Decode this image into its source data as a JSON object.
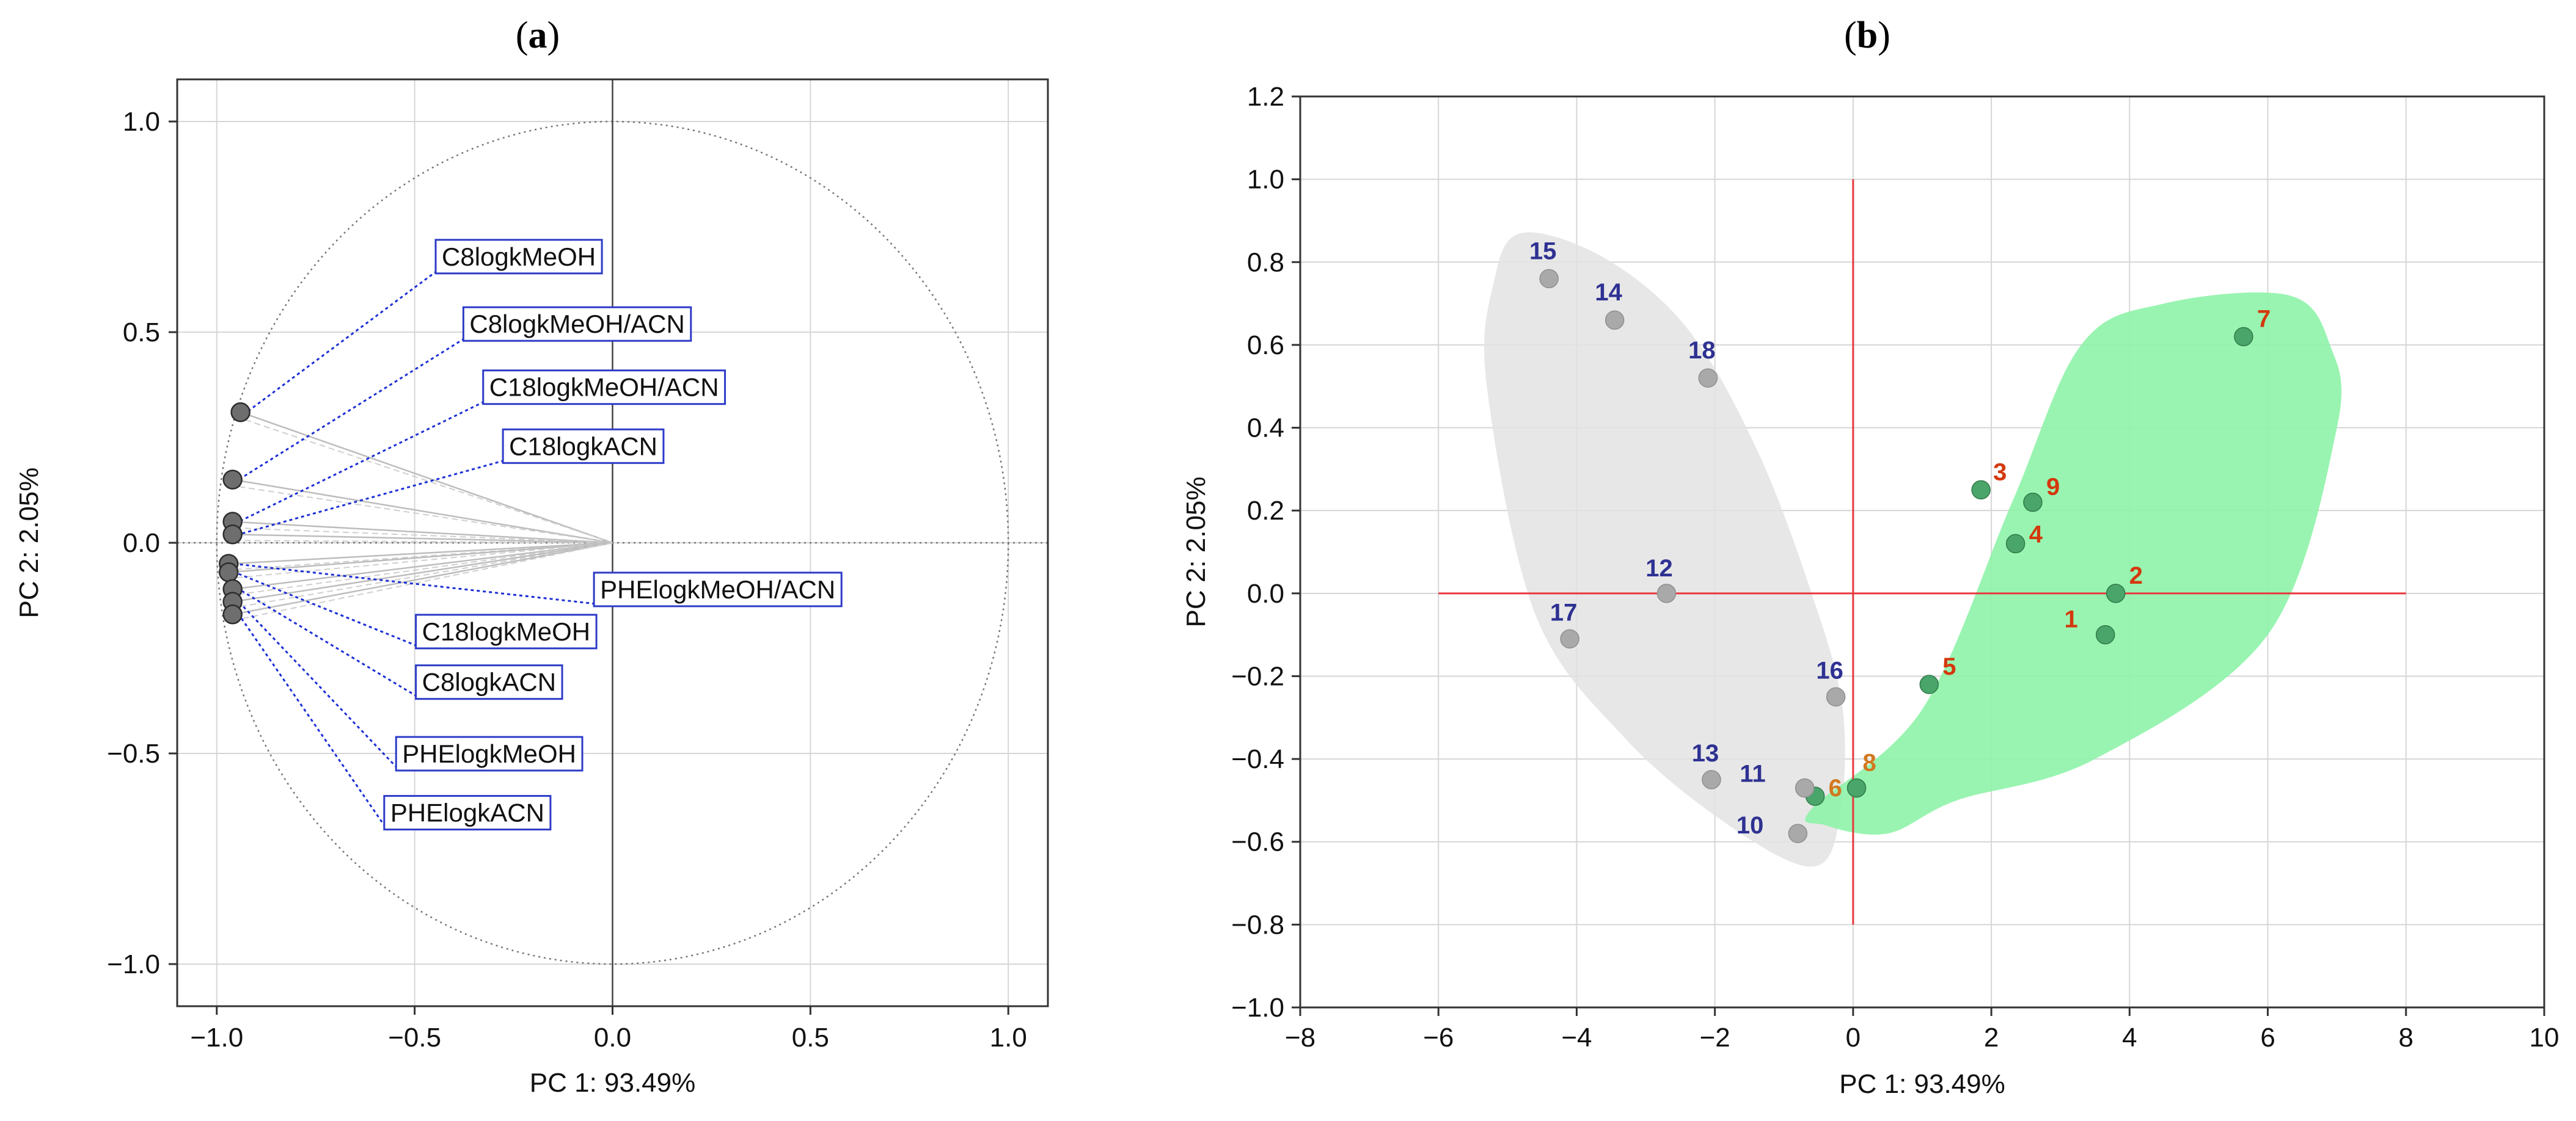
{
  "panel_a": {
    "letter": "a",
    "xlabel": "PC 1: 93.49%",
    "ylabel": "PC 2:  2.05%",
    "xlim": [
      -1.1,
      1.1
    ],
    "ylim": [
      -1.1,
      1.1
    ],
    "xticks": [
      -1.0,
      -0.5,
      0.0,
      0.5,
      1.0
    ],
    "yticks": [
      -1.0,
      -0.5,
      0.0,
      0.5,
      1.0
    ],
    "tick_labels_x": [
      "−1.0",
      "−0.5",
      "0.0",
      "0.5",
      "1.0"
    ],
    "tick_labels_y": [
      "−1.0",
      "−0.5",
      "0.0",
      "0.5",
      "1.0"
    ]
  },
  "panel_b": {
    "letter": "b",
    "xlabel": "PC 1: 93.49%",
    "ylabel": "PC 2:  2.05%",
    "xlim": [
      -8,
      10
    ],
    "ylim": [
      -1.0,
      1.2
    ],
    "xticks": [
      -8,
      -6,
      -4,
      -2,
      0,
      2,
      4,
      6,
      8,
      10
    ],
    "yticks": [
      -1.0,
      -0.8,
      -0.6,
      -0.4,
      -0.2,
      0.0,
      0.2,
      0.4,
      0.6,
      0.8,
      1.0,
      1.2
    ],
    "tick_labels_x": [
      "−8",
      "−6",
      "−4",
      "−2",
      "0",
      "2",
      "4",
      "6",
      "8",
      "10"
    ],
    "tick_labels_y": [
      "−1.0",
      "−0.8",
      "−0.6",
      "−0.4",
      "−0.2",
      "0.0",
      "0.2",
      "0.4",
      "0.6",
      "0.8",
      "1.0",
      "1.2"
    ]
  },
  "chart_data": [
    {
      "type": "scatter",
      "title": "(a)",
      "subtype": "loading plot with unit correlation circle",
      "xlabel": "PC 1: 93.49%",
      "ylabel": "PC 2:  2.05%",
      "xlim": [
        -1.1,
        1.1
      ],
      "ylim": [
        -1.1,
        1.1
      ],
      "points": [
        {
          "label": "C8logkMeOH",
          "x": -0.94,
          "y": 0.31,
          "label_at": [
            -0.45,
            0.68
          ]
        },
        {
          "label": "C8logkMeOH/ACN",
          "x": -0.96,
          "y": 0.15,
          "label_at": [
            -0.38,
            0.52
          ]
        },
        {
          "label": "C18logkMeOH/ACN",
          "x": -0.96,
          "y": 0.05,
          "label_at": [
            -0.33,
            0.37
          ]
        },
        {
          "label": "C18logkACN",
          "x": -0.96,
          "y": 0.02,
          "label_at": [
            -0.28,
            0.23
          ]
        },
        {
          "label": "PHElogkMeOH/ACN",
          "x": -0.97,
          "y": -0.05,
          "label_at": [
            -0.05,
            -0.11
          ]
        },
        {
          "label": "C18logkMeOH",
          "x": -0.97,
          "y": -0.07,
          "label_at": [
            -0.5,
            -0.21
          ]
        },
        {
          "label": "C8logkACN",
          "x": -0.96,
          "y": -0.11,
          "label_at": [
            -0.5,
            -0.33
          ]
        },
        {
          "label": "PHElogkMeOH",
          "x": -0.96,
          "y": -0.14,
          "label_at": [
            -0.55,
            -0.5
          ]
        },
        {
          "label": "PHElogkACN",
          "x": -0.96,
          "y": -0.17,
          "label_at": [
            -0.58,
            -0.64
          ]
        }
      ],
      "grid": true
    },
    {
      "type": "scatter",
      "title": "(b)",
      "subtype": "score plot",
      "xlabel": "PC 1: 93.49%",
      "ylabel": "PC 2:  2.05%",
      "xlim": [
        -8,
        10
      ],
      "ylim": [
        -1.0,
        1.2
      ],
      "series": [
        {
          "name": "green group",
          "color": "#4aa56a",
          "label_color": "#d4380d",
          "hull_color": "#8ef3a8",
          "points": [
            {
              "label": "1",
              "x": 3.65,
              "y": -0.1
            },
            {
              "label": "2",
              "x": 3.8,
              "y": 0.0
            },
            {
              "label": "3",
              "x": 1.85,
              "y": 0.25
            },
            {
              "label": "4",
              "x": 2.35,
              "y": 0.12
            },
            {
              "label": "5",
              "x": 1.1,
              "y": -0.22
            },
            {
              "label": "6",
              "x": -0.55,
              "y": -0.49
            },
            {
              "label": "7",
              "x": 5.65,
              "y": 0.62
            },
            {
              "label": "8",
              "x": 0.05,
              "y": -0.47
            },
            {
              "label": "9",
              "x": 2.6,
              "y": 0.22
            }
          ],
          "hull": [
            [
              -0.6,
              -0.52
            ],
            [
              1.0,
              -0.28
            ],
            [
              2.3,
              0.22
            ],
            [
              3.3,
              0.6
            ],
            [
              4.5,
              0.7
            ],
            [
              6.3,
              0.72
            ],
            [
              6.9,
              0.6
            ],
            [
              7.0,
              0.4
            ],
            [
              6.0,
              -0.1
            ],
            [
              3.5,
              -0.4
            ],
            [
              1.5,
              -0.5
            ],
            [
              0.5,
              -0.58
            ],
            [
              -0.4,
              -0.56
            ]
          ]
        },
        {
          "name": "grey group",
          "color": "#a9a9a9",
          "label_color": "#2e3192",
          "hull_color": "#e3e3e3",
          "points": [
            {
              "label": "10",
              "x": -0.8,
              "y": -0.58
            },
            {
              "label": "11",
              "x": -0.7,
              "y": -0.47
            },
            {
              "label": "12",
              "x": -2.7,
              "y": 0.0
            },
            {
              "label": "13",
              "x": -2.05,
              "y": -0.45
            },
            {
              "label": "14",
              "x": -3.45,
              "y": 0.66
            },
            {
              "label": "15",
              "x": -4.4,
              "y": 0.76
            },
            {
              "label": "16",
              "x": -0.25,
              "y": -0.25
            },
            {
              "label": "17",
              "x": -4.1,
              "y": -0.11
            },
            {
              "label": "18",
              "x": -2.1,
              "y": 0.52
            }
          ],
          "hull": [
            [
              -5.2,
              0.75
            ],
            [
              -4.8,
              0.87
            ],
            [
              -3.6,
              0.81
            ],
            [
              -2.4,
              0.64
            ],
            [
              -1.4,
              0.35
            ],
            [
              -0.6,
              0.0
            ],
            [
              -0.15,
              -0.28
            ],
            [
              -0.2,
              -0.55
            ],
            [
              -0.6,
              -0.66
            ],
            [
              -1.8,
              -0.56
            ],
            [
              -3.3,
              -0.35
            ],
            [
              -4.6,
              -0.05
            ],
            [
              -5.3,
              0.5
            ]
          ]
        }
      ],
      "reference_lines": {
        "horizontal": {
          "y": 0.0,
          "x_range": [
            -6,
            8
          ]
        },
        "vertical": {
          "x": 0.0,
          "y_range": [
            -0.8,
            1.0
          ]
        },
        "color": "#e8383d"
      },
      "grid": true
    }
  ]
}
